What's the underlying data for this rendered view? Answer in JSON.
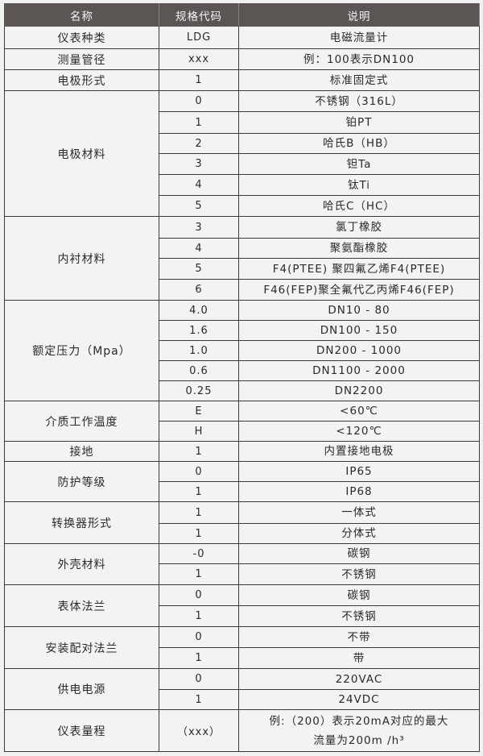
{
  "header": {
    "name": "名称",
    "code": "规格代码",
    "desc": "说明"
  },
  "groups": [
    {
      "name": "仪表种类",
      "rows": [
        {
          "code": "LDG",
          "desc": "电磁流量计",
          "h": 28
        }
      ]
    },
    {
      "name": "测量管径",
      "rows": [
        {
          "code": "xxx",
          "desc": "例：100表示DN100",
          "h": 26
        }
      ]
    },
    {
      "name": "电极形式",
      "rows": [
        {
          "code": "1",
          "desc": "标准固定式",
          "h": 26
        }
      ]
    },
    {
      "name": "电极材料",
      "rows": [
        {
          "code": "0",
          "desc": "不锈钢（316L）",
          "h": 26
        },
        {
          "code": "1",
          "desc": "铂PT",
          "h": 27
        },
        {
          "code": "2",
          "desc": "哈氏B（HB）",
          "h": 25
        },
        {
          "code": "3",
          "desc": "钽Ta",
          "h": 26
        },
        {
          "code": "4",
          "desc": "钛Ti",
          "h": 26
        },
        {
          "code": "5",
          "desc": "哈氏C（HC）",
          "h": 26
        }
      ]
    },
    {
      "name": "内衬材料",
      "rows": [
        {
          "code": "3",
          "desc": "氯丁橡胶",
          "h": 27
        },
        {
          "code": "4",
          "desc": "聚氨酯橡胶",
          "h": 25
        },
        {
          "code": "5",
          "desc": "F4(PTEE) 聚四氟乙烯F4(PTEE)",
          "h": 26
        },
        {
          "code": "6",
          "desc": "F46(FEP)聚全氟代乙丙烯F46(FEP)",
          "h": 26
        }
      ]
    },
    {
      "name": "额定压力（Mpa）",
      "rows": [
        {
          "code": "4.0",
          "desc": "DN10 - 80",
          "h": 24
        },
        {
          "code": "1.6",
          "desc": "DN100 - 150",
          "h": 24
        },
        {
          "code": "1.0",
          "desc": "DN200 - 1000",
          "h": 22
        },
        {
          "code": "0.6",
          "desc": "DN1100 - 2000",
          "h": 24
        },
        {
          "code": "0.25",
          "desc": "DN2200",
          "h": 24
        }
      ]
    },
    {
      "name": "介质工作温度",
      "rows": [
        {
          "code": "E",
          "desc": "<60℃",
          "h": 25
        },
        {
          "code": "H",
          "desc": "<120℃",
          "h": 25
        }
      ]
    },
    {
      "name": "接地",
      "rows": [
        {
          "code": "1",
          "desc": "内置接地电极",
          "h": 25
        }
      ]
    },
    {
      "name": "防护等级",
      "rows": [
        {
          "code": "0",
          "desc": "IP65",
          "h": 25
        },
        {
          "code": "1",
          "desc": "IP68",
          "h": 25
        }
      ]
    },
    {
      "name": "转换器形式",
      "rows": [
        {
          "code": "1",
          "desc": "一体式",
          "h": 27
        },
        {
          "code": "1",
          "desc": "分体式",
          "h": 25
        }
      ]
    },
    {
      "name": "外壳材料",
      "rows": [
        {
          "code": "-0",
          "desc": "碳钢",
          "h": 25
        },
        {
          "code": "1",
          "desc": "不锈钢",
          "h": 26
        }
      ]
    },
    {
      "name": "表体法兰",
      "rows": [
        {
          "code": "0",
          "desc": "碳钢",
          "h": 26
        },
        {
          "code": "1",
          "desc": "不锈钢",
          "h": 26
        }
      ]
    },
    {
      "name": "安装配对法兰",
      "rows": [
        {
          "code": "0",
          "desc": "不带",
          "h": 26
        },
        {
          "code": "1",
          "desc": "带",
          "h": 26
        }
      ]
    },
    {
      "name": "供电电源",
      "rows": [
        {
          "code": "0",
          "desc": "220VAC",
          "h": 26
        },
        {
          "code": "1",
          "desc": "24VDC",
          "h": 25
        }
      ]
    },
    {
      "name": "仪表量程",
      "rows": [
        {
          "code": "（xxx）",
          "desc": "例:（200）表示20mA对应的最大\n流量为200m /h³",
          "h": 52
        }
      ]
    }
  ]
}
